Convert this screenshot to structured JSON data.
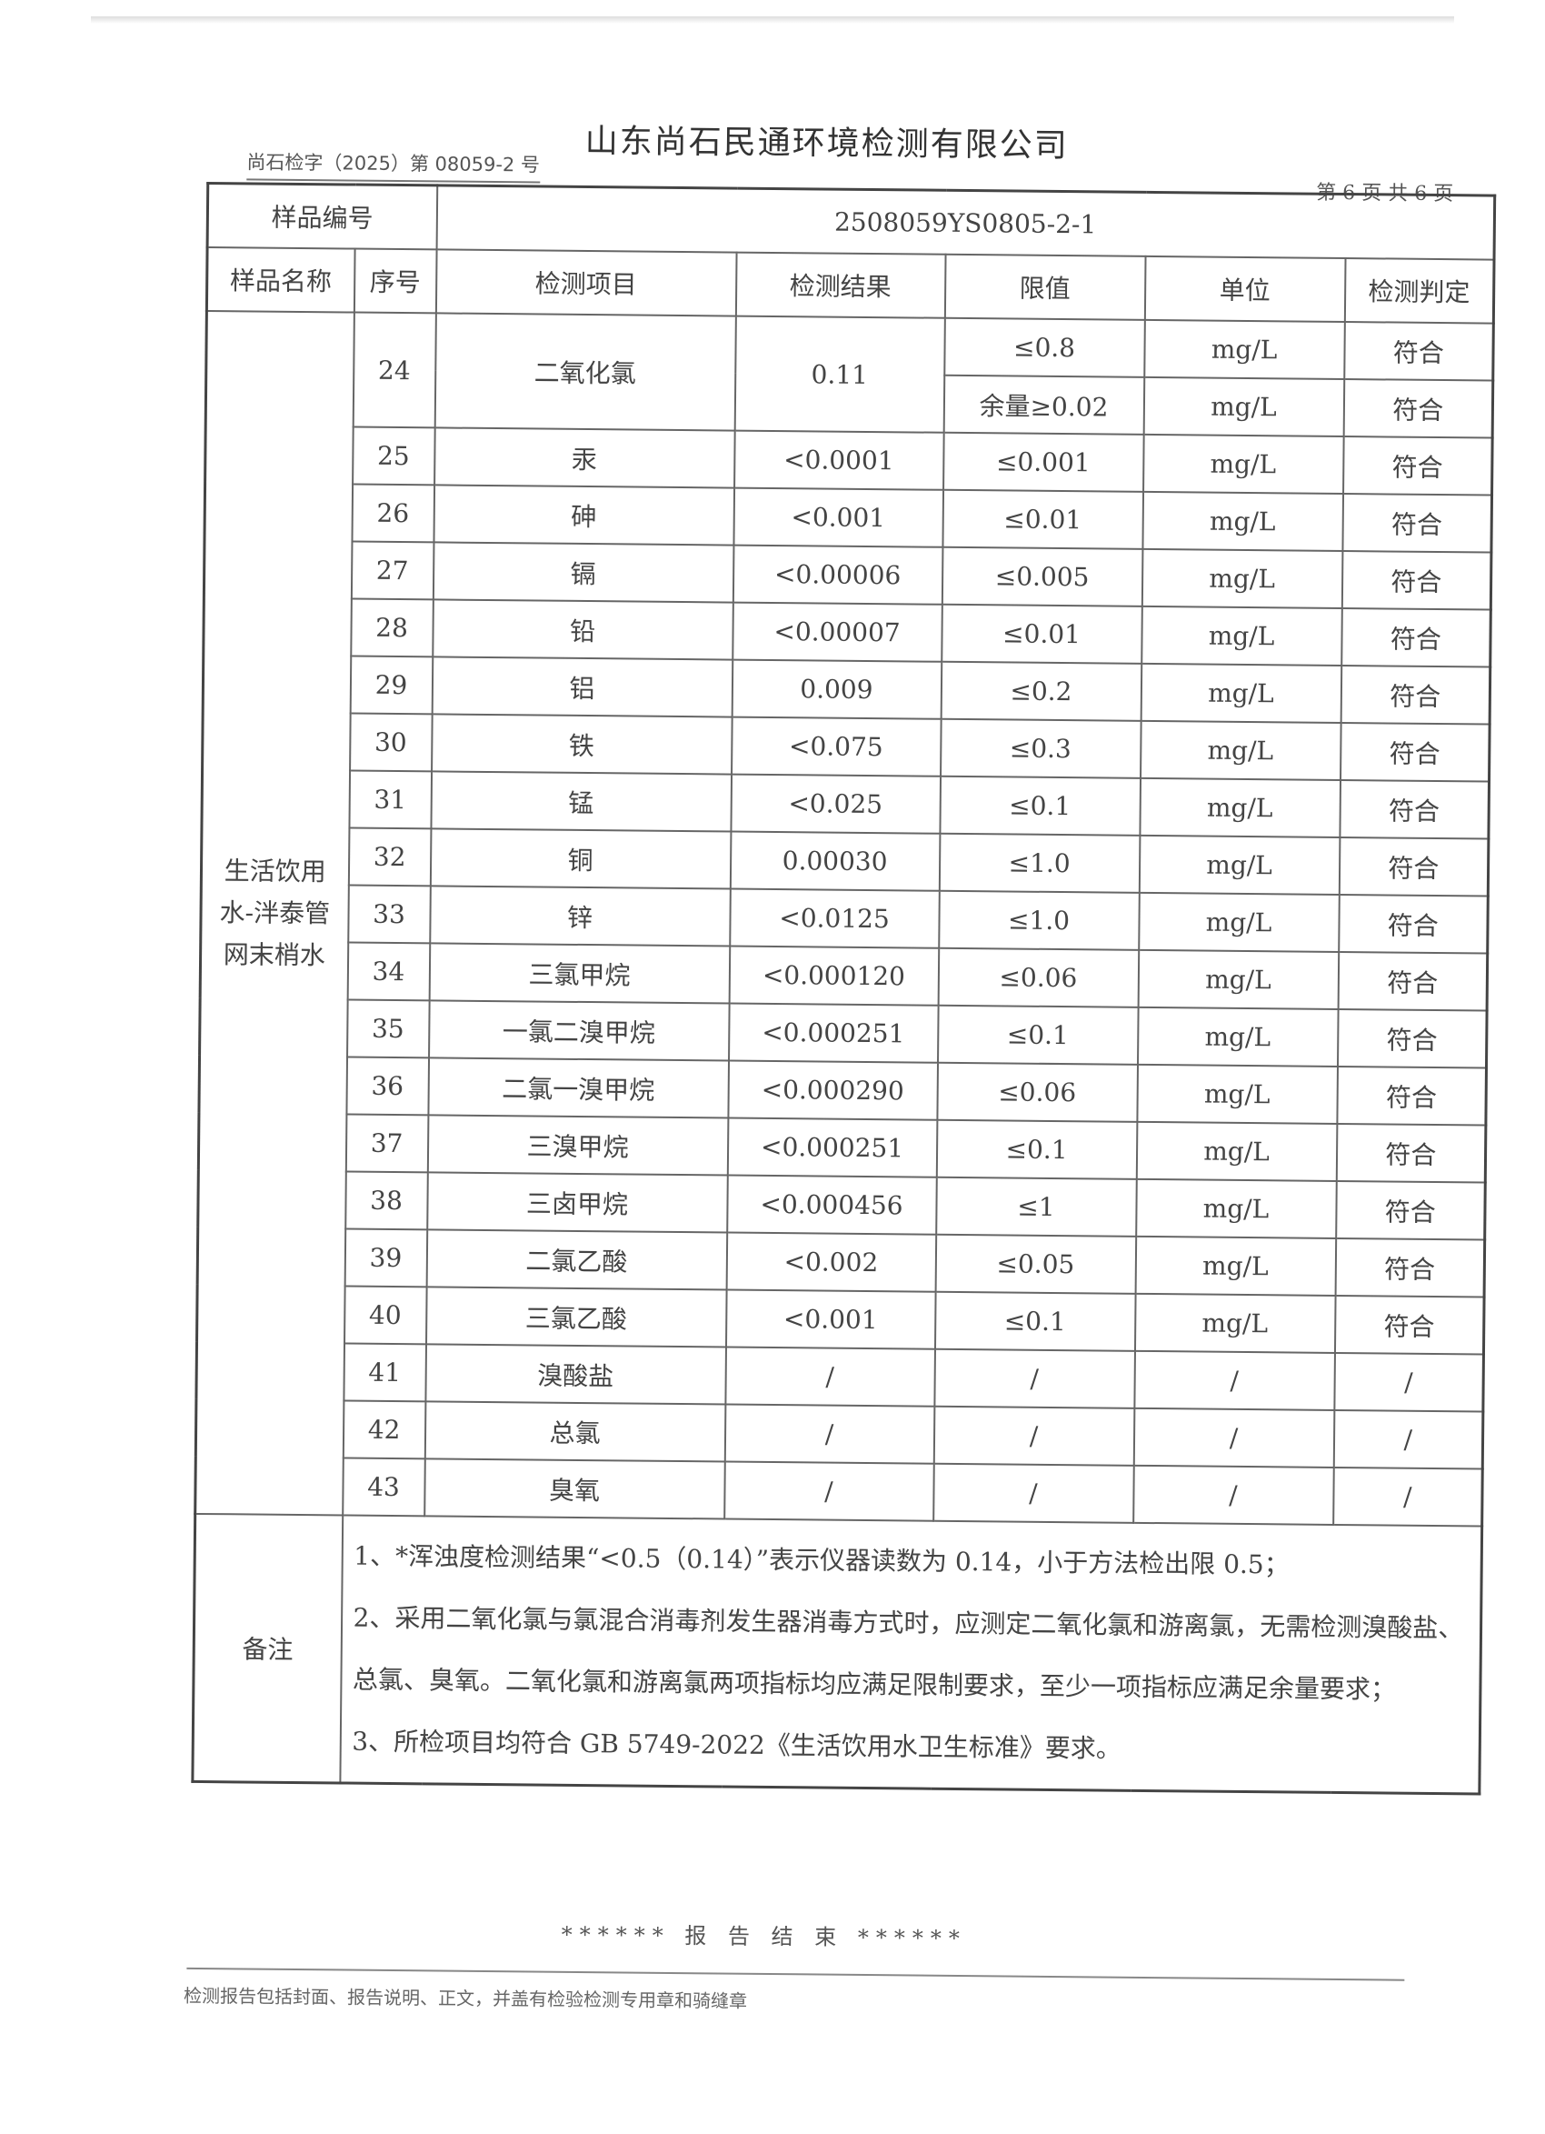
{
  "header": {
    "company": "山东尚石民通环境检测有限公司",
    "doc_number": "尚石检字（2025）第 08059-2 号",
    "page_info": "第 6 页 共 6 页"
  },
  "table": {
    "sample_id_label": "样品编号",
    "sample_id": "2508059YS0805-2-1",
    "columns": [
      "样品名称",
      "序号",
      "检测项目",
      "检测结果",
      "限值",
      "单位",
      "检测判定"
    ],
    "sample_name": "生活饮用水-泮泰管网末梢水",
    "row24": {
      "no": "24",
      "item": "二氧化氯",
      "result": "0.11",
      "limits": [
        "≤0.8",
        "余量≥0.02"
      ],
      "units": [
        "mg/L",
        "mg/L"
      ],
      "judgements": [
        "符合",
        "符合"
      ]
    },
    "rows": [
      {
        "no": "25",
        "item": "汞",
        "result": "<0.0001",
        "limit": "≤0.001",
        "unit": "mg/L",
        "judgement": "符合"
      },
      {
        "no": "26",
        "item": "砷",
        "result": "<0.001",
        "limit": "≤0.01",
        "unit": "mg/L",
        "judgement": "符合"
      },
      {
        "no": "27",
        "item": "镉",
        "result": "<0.00006",
        "limit": "≤0.005",
        "unit": "mg/L",
        "judgement": "符合"
      },
      {
        "no": "28",
        "item": "铅",
        "result": "<0.00007",
        "limit": "≤0.01",
        "unit": "mg/L",
        "judgement": "符合"
      },
      {
        "no": "29",
        "item": "铝",
        "result": "0.009",
        "limit": "≤0.2",
        "unit": "mg/L",
        "judgement": "符合"
      },
      {
        "no": "30",
        "item": "铁",
        "result": "<0.075",
        "limit": "≤0.3",
        "unit": "mg/L",
        "judgement": "符合"
      },
      {
        "no": "31",
        "item": "锰",
        "result": "<0.025",
        "limit": "≤0.1",
        "unit": "mg/L",
        "judgement": "符合"
      },
      {
        "no": "32",
        "item": "铜",
        "result": "0.00030",
        "limit": "≤1.0",
        "unit": "mg/L",
        "judgement": "符合"
      },
      {
        "no": "33",
        "item": "锌",
        "result": "<0.0125",
        "limit": "≤1.0",
        "unit": "mg/L",
        "judgement": "符合"
      },
      {
        "no": "34",
        "item": "三氯甲烷",
        "result": "<0.000120",
        "limit": "≤0.06",
        "unit": "mg/L",
        "judgement": "符合"
      },
      {
        "no": "35",
        "item": "一氯二溴甲烷",
        "result": "<0.000251",
        "limit": "≤0.1",
        "unit": "mg/L",
        "judgement": "符合"
      },
      {
        "no": "36",
        "item": "二氯一溴甲烷",
        "result": "<0.000290",
        "limit": "≤0.06",
        "unit": "mg/L",
        "judgement": "符合"
      },
      {
        "no": "37",
        "item": "三溴甲烷",
        "result": "<0.000251",
        "limit": "≤0.1",
        "unit": "mg/L",
        "judgement": "符合"
      },
      {
        "no": "38",
        "item": "三卤甲烷",
        "result": "<0.000456",
        "limit": "≤1",
        "unit": "mg/L",
        "judgement": "符合"
      },
      {
        "no": "39",
        "item": "二氯乙酸",
        "result": "<0.002",
        "limit": "≤0.05",
        "unit": "mg/L",
        "judgement": "符合"
      },
      {
        "no": "40",
        "item": "三氯乙酸",
        "result": "<0.001",
        "limit": "≤0.1",
        "unit": "mg/L",
        "judgement": "符合"
      },
      {
        "no": "41",
        "item": "溴酸盐",
        "result": "/",
        "limit": "/",
        "unit": "/",
        "judgement": "/"
      },
      {
        "no": "42",
        "item": "总氯",
        "result": "/",
        "limit": "/",
        "unit": "/",
        "judgement": "/"
      },
      {
        "no": "43",
        "item": "臭氧",
        "result": "/",
        "limit": "/",
        "unit": "/",
        "judgement": "/"
      }
    ],
    "notes_label": "备注",
    "notes": [
      "1、*浑浊度检测结果“<0.5（0.14）”表示仪器读数为 0.14，小于方法检出限 0.5；",
      "2、采用二氧化氯与氯混合消毒剂发生器消毒方式时，应测定二氧化氯和游离氯，无需检测溴酸盐、总氯、臭氧。二氧化氯和游离氯两项指标均应满足限制要求，至少一项指标应满足余量要求；",
      "3、所检项目均符合 GB 5749-2022《生活饮用水卫生标准》要求。"
    ]
  },
  "end_text": "****** 报 告 结 束 ******",
  "footer": "检测报告包括封面、报告说明、正文，并盖有检验检测专用章和骑缝章"
}
